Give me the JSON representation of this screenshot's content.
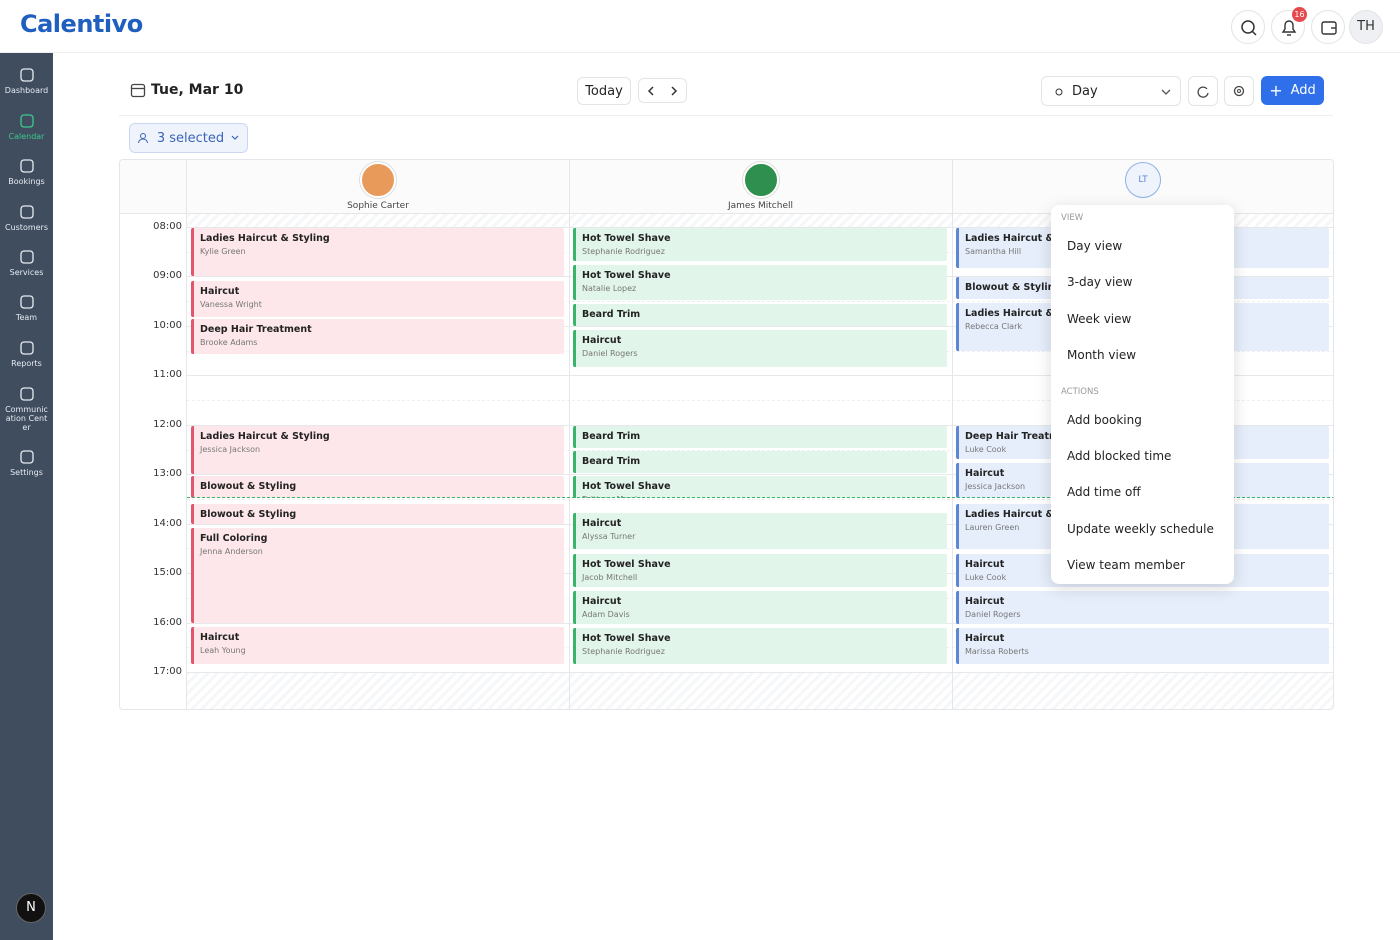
{
  "header": {
    "logo": "Calentivo",
    "notification_count": "16",
    "user_initials": "TH"
  },
  "sidebar": {
    "items": [
      {
        "label": "Dashboard"
      },
      {
        "label": "Calendar"
      },
      {
        "label": "Bookings"
      },
      {
        "label": "Customers"
      },
      {
        "label": "Services"
      },
      {
        "label": "Team"
      },
      {
        "label": "Reports"
      },
      {
        "label": "Communication Center"
      },
      {
        "label": "Settings"
      }
    ],
    "workspace_initial": "N"
  },
  "toolbar": {
    "date": "Tue, Mar 10",
    "today": "Today",
    "view": "Day",
    "add": "Add",
    "staff_filter": "3 selected"
  },
  "calendar": {
    "times": [
      "08:00",
      "09:00",
      "10:00",
      "11:00",
      "12:00",
      "13:00",
      "14:00",
      "15:00",
      "16:00",
      "17:00"
    ],
    "columns": [
      {
        "name": "Sophie Carter",
        "bookings": [
          {
            "service": "Ladies Haircut & Styling",
            "customer": "Kylie Green"
          },
          {
            "service": "Haircut",
            "customer": "Vanessa Wright"
          },
          {
            "service": "Deep Hair Treatment",
            "customer": "Brooke Adams"
          },
          {
            "service": "Ladies Haircut & Styling",
            "customer": "Jessica Jackson"
          },
          {
            "service": "Blowout & Styling"
          },
          {
            "service": "Blowout & Styling"
          },
          {
            "service": "Full Coloring",
            "customer": "Jenna Anderson"
          },
          {
            "service": "Haircut",
            "customer": "Leah Young"
          }
        ]
      },
      {
        "name": "James Mitchell",
        "bookings": [
          {
            "service": "Hot Towel Shave",
            "customer": "Stephanie Rodriguez"
          },
          {
            "service": "Hot Towel Shave",
            "customer": "Natalie Lopez"
          },
          {
            "service": "Beard Trim"
          },
          {
            "service": "Haircut",
            "customer": "Daniel Rogers"
          },
          {
            "service": "Beard Trim"
          },
          {
            "service": "Beard Trim"
          },
          {
            "service": "Hot Towel Shave",
            "customer": "Brittany Morris"
          },
          {
            "service": "Haircut",
            "customer": "Alyssa Turner"
          },
          {
            "service": "Hot Towel Shave",
            "customer": "Jacob Mitchell"
          },
          {
            "service": "Haircut",
            "customer": "Adam Davis"
          },
          {
            "service": "Hot Towel Shave",
            "customer": "Stephanie Rodriguez"
          }
        ]
      },
      {
        "initials": "LT",
        "bookings": [
          {
            "service": "Ladies Haircut & Styling",
            "customer": "Samantha Hill"
          },
          {
            "service": "Blowout & Styling"
          },
          {
            "service": "Ladies Haircut & Styling",
            "customer": "Rebecca Clark"
          },
          {
            "service": "Deep Hair Treatment",
            "customer": "Luke Cook"
          },
          {
            "service": "Haircut",
            "customer": "Jessica Jackson"
          },
          {
            "service": "Ladies Haircut & Styling",
            "customer": "Lauren Green"
          },
          {
            "service": "Haircut",
            "customer": "Luke Cook"
          },
          {
            "service": "Haircut",
            "customer": "Daniel Rogers"
          },
          {
            "service": "Haircut",
            "customer": "Marissa Roberts"
          }
        ]
      }
    ]
  },
  "menu": {
    "sections": [
      {
        "title": "VIEW",
        "items": [
          "Day view",
          "3-day view",
          "Week view",
          "Month view"
        ]
      },
      {
        "title": "ACTIONS",
        "items": [
          "Add booking",
          "Add blocked time",
          "Add time off",
          "Update weekly schedule",
          "View team member"
        ]
      }
    ]
  }
}
